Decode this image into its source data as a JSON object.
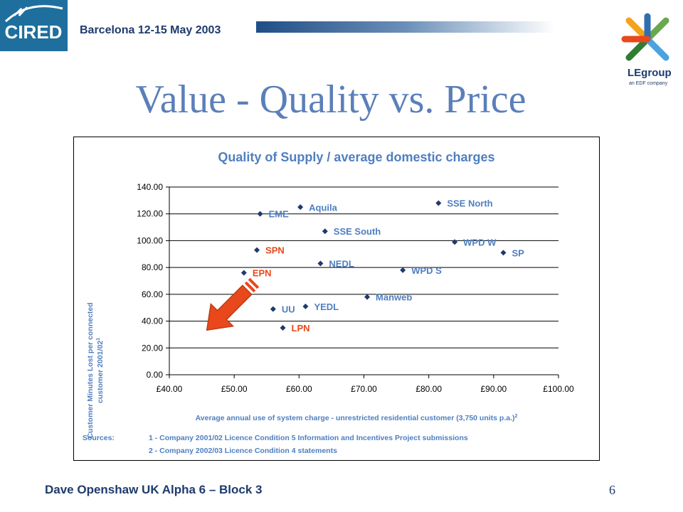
{
  "header": {
    "conference": "Barcelona  12-15 May 2003"
  },
  "logos": {
    "cired_text": "CIRED",
    "le_text": "LEgroup",
    "le_sub": "an EDF company"
  },
  "slide": {
    "title": "Value - Quality vs. Price"
  },
  "chart_data": {
    "type": "scatter",
    "title": "Quality of Supply / average domestic charges",
    "xlabel": "Average annual use of system charge - unrestricted residential customer (3,750 units p.a.)",
    "xlabel_sup": "2",
    "ylabel_line1": "Customer Minutes Lost per connected",
    "ylabel_line2": "customer 2001/02",
    "ylabel_sup": "1",
    "xlim": [
      40,
      100
    ],
    "ylim": [
      0,
      140
    ],
    "x_ticks": [
      "£40.00",
      "£50.00",
      "£60.00",
      "£70.00",
      "£80.00",
      "£90.00",
      "£100.00"
    ],
    "y_ticks": [
      "0.00",
      "20.00",
      "40.00",
      "60.00",
      "80.00",
      "100.00",
      "120.00",
      "140.00"
    ],
    "grid": "horizontal",
    "points": [
      {
        "label": "EME",
        "x": 54.0,
        "y": 120,
        "color": "#4f7fc0"
      },
      {
        "label": "Aquila",
        "x": 60.2,
        "y": 125,
        "color": "#4f7fc0"
      },
      {
        "label": "SSE North",
        "x": 81.5,
        "y": 128,
        "color": "#4f7fc0"
      },
      {
        "label": "SSE South",
        "x": 64.0,
        "y": 107,
        "color": "#4f7fc0"
      },
      {
        "label": "WPD W",
        "x": 84.0,
        "y": 99,
        "color": "#4f7fc0"
      },
      {
        "label": "SP",
        "x": 91.5,
        "y": 91,
        "color": "#4f7fc0"
      },
      {
        "label": "SPN",
        "x": 53.5,
        "y": 93,
        "color": "#e8481c"
      },
      {
        "label": "NEDL",
        "x": 63.3,
        "y": 83,
        "color": "#4f7fc0"
      },
      {
        "label": "WPD S",
        "x": 76.0,
        "y": 78,
        "color": "#4f7fc0"
      },
      {
        "label": "EPN",
        "x": 51.5,
        "y": 76,
        "color": "#e8481c"
      },
      {
        "label": "Manweb",
        "x": 70.5,
        "y": 58,
        "color": "#4f7fc0"
      },
      {
        "label": "YEDL",
        "x": 61.0,
        "y": 51,
        "color": "#4f7fc0"
      },
      {
        "label": "UU",
        "x": 56.0,
        "y": 49,
        "color": "#4f7fc0"
      },
      {
        "label": "LPN",
        "x": 57.5,
        "y": 35,
        "color": "#e8481c"
      }
    ],
    "sources_label": "Sources:",
    "sources": [
      "1 - Company 2001/02 Licence Condition 5 Information and Incentives Project submissions",
      "2 - Company 2002/03 Licence Condition 4 statements"
    ],
    "arrow_color": "#e8481c",
    "axis_text_color": "#4f7fc0"
  },
  "footer": {
    "presenter": "Dave Openshaw  UK  Alpha 6 – Block 3",
    "page": "6"
  }
}
